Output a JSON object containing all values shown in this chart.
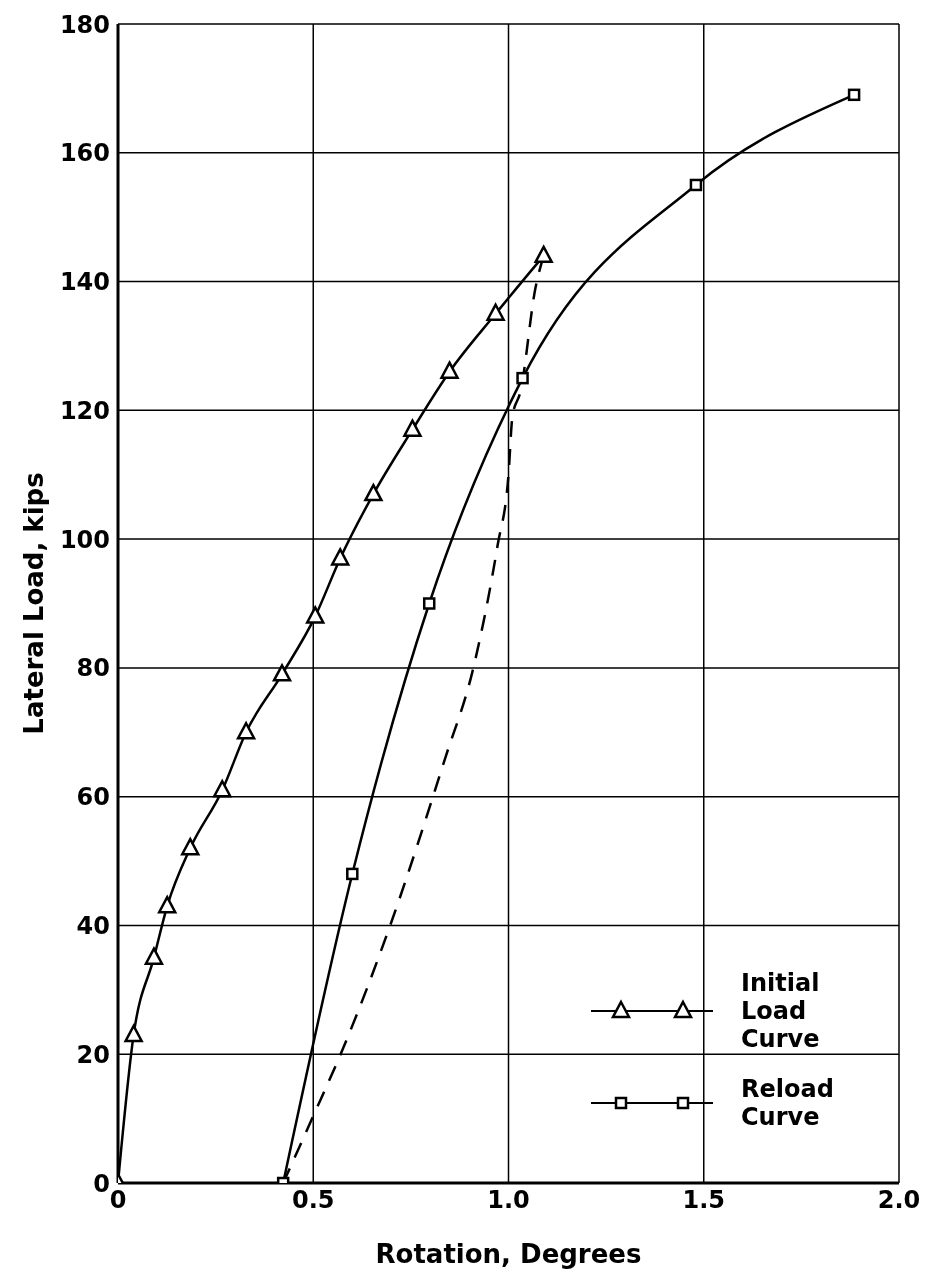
{
  "chart_data": {
    "type": "line",
    "xlabel": "Rotation, Degrees",
    "ylabel": "Lateral Load, kips",
    "xlim": [
      0,
      2
    ],
    "xticks": [
      0,
      0.5,
      {
        "value": 1,
        "label": "1.0"
      },
      {
        "value": 1.5,
        "label": "1.5"
      },
      {
        "value": 2,
        "label": "2.0"
      }
    ],
    "ylim": [
      0,
      180
    ],
    "yticks": [
      0,
      20,
      40,
      60,
      80,
      100,
      120,
      140,
      160,
      180
    ],
    "grid": true,
    "legend": "bottom right",
    "line_style": "solid",
    "series": [
      {
        "name": "Initial Load Curve",
        "color": "#000000",
        "marker": "triangle",
        "x": [
          0,
          0.04,
          0.092,
          0.126,
          0.185,
          0.267,
          0.328,
          0.42,
          0.505,
          0.569,
          0.654,
          0.754,
          0.849,
          0.967,
          1.09
        ],
        "values": [
          0,
          23,
          35,
          43,
          52,
          61,
          70,
          79,
          88,
          97,
          107,
          117,
          126,
          135,
          144
        ]
      },
      {
        "name": "Reload Curve",
        "color": "#000000",
        "marker": "square",
        "x": [
          0.423,
          0.6,
          0.797,
          1.036,
          1.48,
          1.885
        ],
        "values": [
          0,
          48,
          90,
          125,
          155,
          169
        ]
      },
      {
        "color": "#000000",
        "marker": "none",
        "line_style": "dashed",
        "x": [
          0.423,
          0.497,
          0.577,
          0.697,
          0.838,
          0.91,
          0.972,
          1.0,
          1.01,
          1.031,
          1.069,
          1.09
        ],
        "values": [
          0,
          10,
          21,
          40,
          66,
          80,
          99,
          110,
          119,
          123,
          139,
          144
        ]
      }
    ]
  }
}
